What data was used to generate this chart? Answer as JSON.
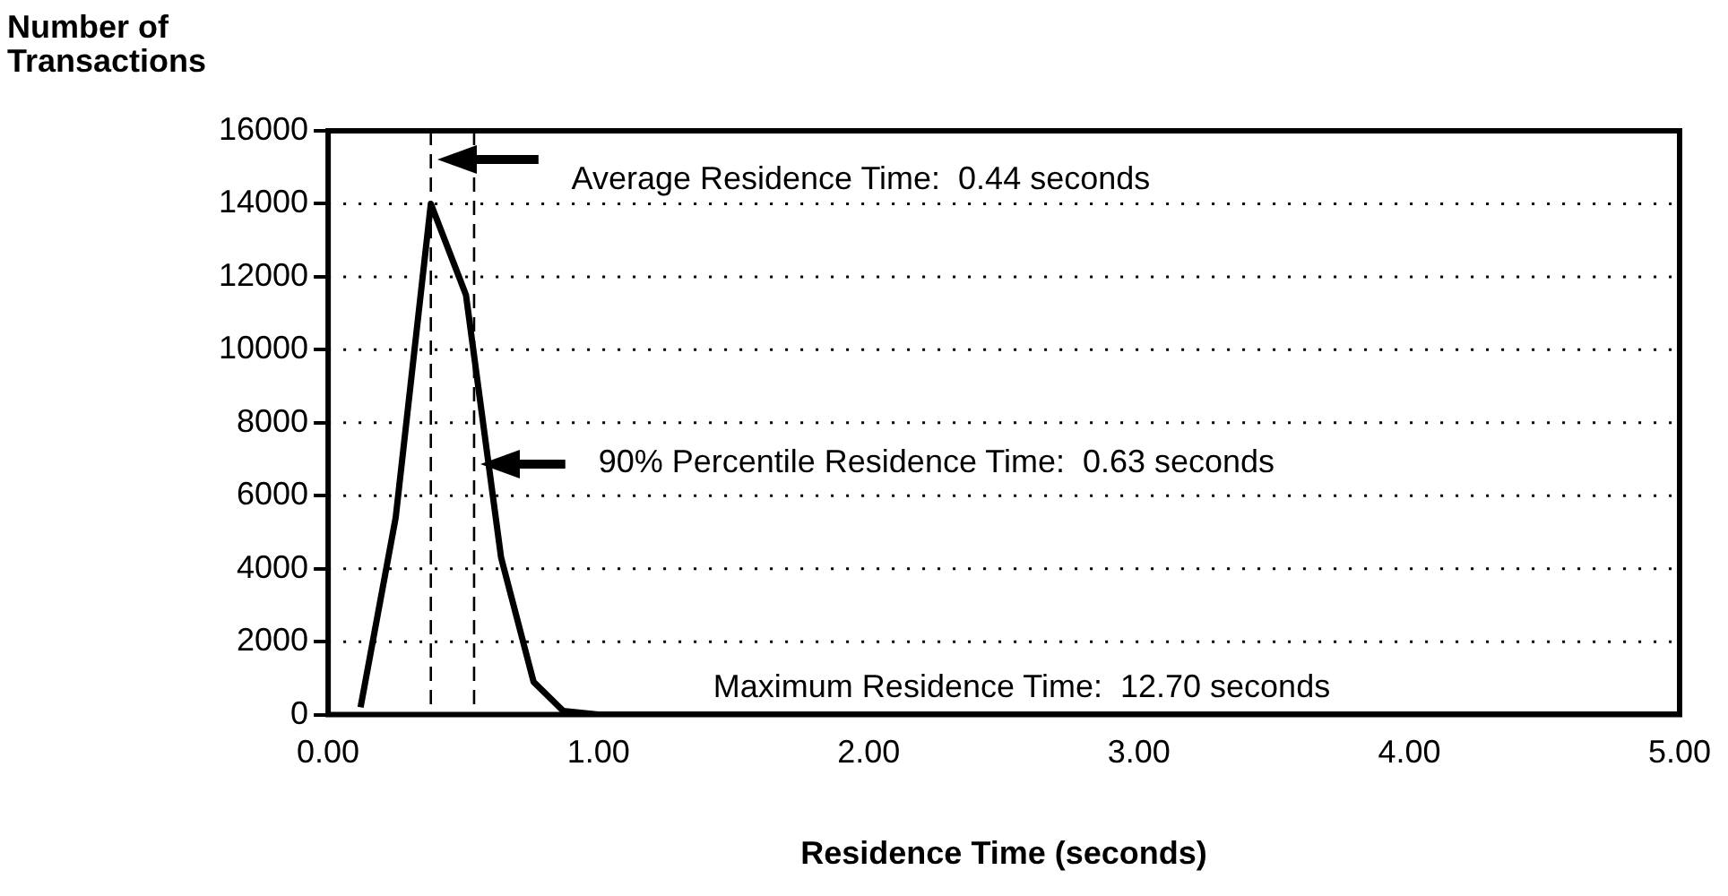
{
  "chart_data": {
    "type": "line",
    "xlabel": "Residence Time (seconds)",
    "ylabel": "Number of Transactions",
    "x": [
      0.12,
      0.25,
      0.38,
      0.51,
      0.64,
      0.76,
      0.87,
      1.0,
      5.0
    ],
    "series": [
      {
        "color": "#000000",
        "values": [
          200,
          5400,
          14000,
          11500,
          4300,
          900,
          100,
          0,
          0
        ]
      }
    ],
    "xlim": [
      0,
      5
    ],
    "xticks": [
      {
        "value": 0,
        "label": "0.00"
      },
      {
        "value": 1,
        "label": "1.00"
      },
      {
        "value": 2,
        "label": "2.00"
      },
      {
        "value": 3,
        "label": "3.00"
      },
      {
        "value": 4,
        "label": "4.00"
      },
      {
        "value": 5,
        "label": "5.00"
      }
    ],
    "ylim": [
      0,
      16000
    ],
    "yticks": [
      0,
      2000,
      4000,
      6000,
      8000,
      10000,
      12000,
      14000,
      16000
    ],
    "ref_lines": [
      {
        "axis": "x",
        "value": 0.38,
        "color": "#000000",
        "line_style": "dashed"
      },
      {
        "axis": "x",
        "value": 0.54,
        "color": "#000000",
        "line_style": "dashed"
      }
    ],
    "annotations": [
      "Average Residence Time:  0.44 seconds",
      "90% Percentile Residence Time:  0.63 seconds",
      "Maximum Residence Time:  12.70 seconds"
    ],
    "grid": "y",
    "marker": "none",
    "line_style": "solid",
    "legend": false
  }
}
